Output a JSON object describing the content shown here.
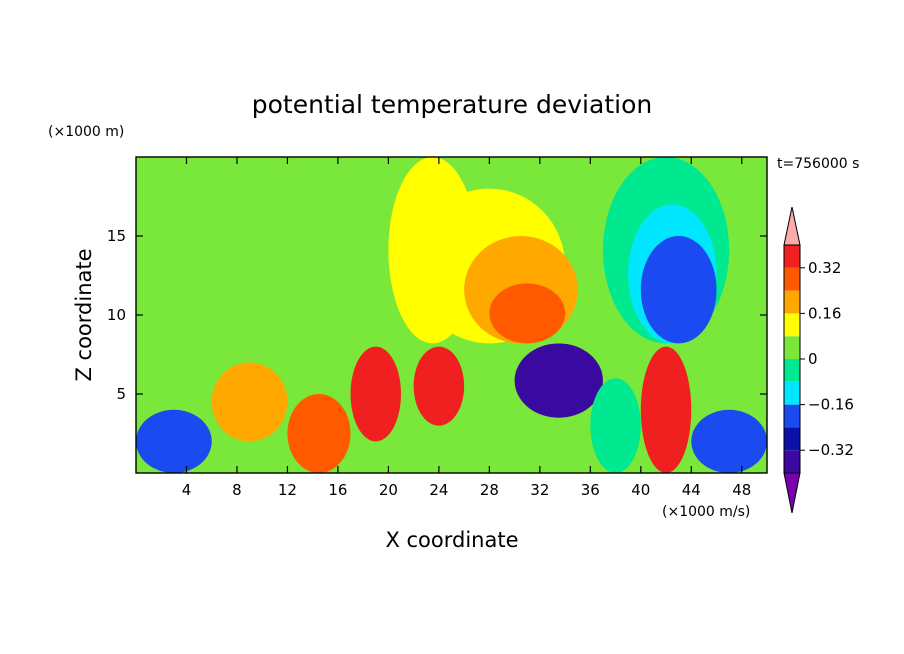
{
  "chart_data": {
    "type": "heatmap",
    "title": "potential temperature deviation",
    "xlabel": "X coordinate",
    "ylabel": "Z coordinate",
    "x_unit": "(×1000 m/s)",
    "y_unit": "(×1000 m)",
    "time_label": "t=756000 s",
    "xlim": [
      0,
      50
    ],
    "ylim": [
      0,
      20
    ],
    "x_ticks": [
      4,
      8,
      12,
      16,
      20,
      24,
      28,
      32,
      36,
      40,
      44,
      48
    ],
    "y_ticks": [
      5,
      10,
      15
    ],
    "colorbar": {
      "ticks": [
        "0.32",
        "0.16",
        "0",
        "−0.16",
        "−0.32"
      ],
      "tick_values": [
        0.32,
        0.16,
        0,
        -0.16,
        -0.32
      ],
      "levels": [
        -0.4,
        -0.32,
        -0.24,
        -0.16,
        -0.08,
        0,
        0.08,
        0.16,
        0.24,
        0.32,
        0.4
      ],
      "colors": [
        "#7a00b0",
        "#3a0aa0",
        "#0a10a8",
        "#1a4af0",
        "#00e6ff",
        "#00e890",
        "#7ae83a",
        "#ffff00",
        "#ffa800",
        "#ff5a00",
        "#f02020",
        "#ffaaaa"
      ]
    },
    "regions": [
      {
        "x": [
          0,
          50
        ],
        "y": [
          0,
          20
        ],
        "level": 0.04
      },
      {
        "x": [
          4,
          16
        ],
        "y": [
          9,
          18
        ],
        "level": 0.01
      },
      {
        "x": [
          20,
          27
        ],
        "y": [
          8.2,
          20
        ],
        "level": 0.12
      },
      {
        "x": [
          22,
          34
        ],
        "y": [
          8.2,
          18
        ],
        "level": 0.15
      },
      {
        "x": [
          26,
          35
        ],
        "y": [
          8.2,
          15
        ],
        "level": 0.2
      },
      {
        "x": [
          28,
          34
        ],
        "y": [
          8.2,
          12
        ],
        "level": 0.25
      },
      {
        "x": [
          37,
          47
        ],
        "y": [
          8.2,
          20
        ],
        "level": -0.04
      },
      {
        "x": [
          39,
          46
        ],
        "y": [
          8.2,
          17
        ],
        "level": -0.1
      },
      {
        "x": [
          40,
          46
        ],
        "y": [
          8.2,
          15
        ],
        "level": -0.2
      },
      {
        "x": [
          0,
          50
        ],
        "y": [
          0,
          8.2
        ],
        "level": 0.0
      },
      {
        "x": [
          0,
          6
        ],
        "y": [
          0,
          4
        ],
        "level": -0.2
      },
      {
        "x": [
          6,
          12
        ],
        "y": [
          2,
          7
        ],
        "level": 0.2
      },
      {
        "x": [
          12,
          17
        ],
        "y": [
          0,
          5
        ],
        "level": 0.28
      },
      {
        "x": [
          17,
          21
        ],
        "y": [
          2,
          8
        ],
        "level": 0.35
      },
      {
        "x": [
          22,
          26
        ],
        "y": [
          3,
          8
        ],
        "level": 0.33
      },
      {
        "x": [
          30,
          37
        ],
        "y": [
          3.5,
          8.2
        ],
        "level": -0.4
      },
      {
        "x": [
          36,
          40
        ],
        "y": [
          0,
          6
        ],
        "level": -0.05
      },
      {
        "x": [
          40,
          44
        ],
        "y": [
          0,
          8
        ],
        "level": 0.35
      },
      {
        "x": [
          44,
          50
        ],
        "y": [
          0,
          4
        ],
        "level": -0.24
      }
    ]
  }
}
